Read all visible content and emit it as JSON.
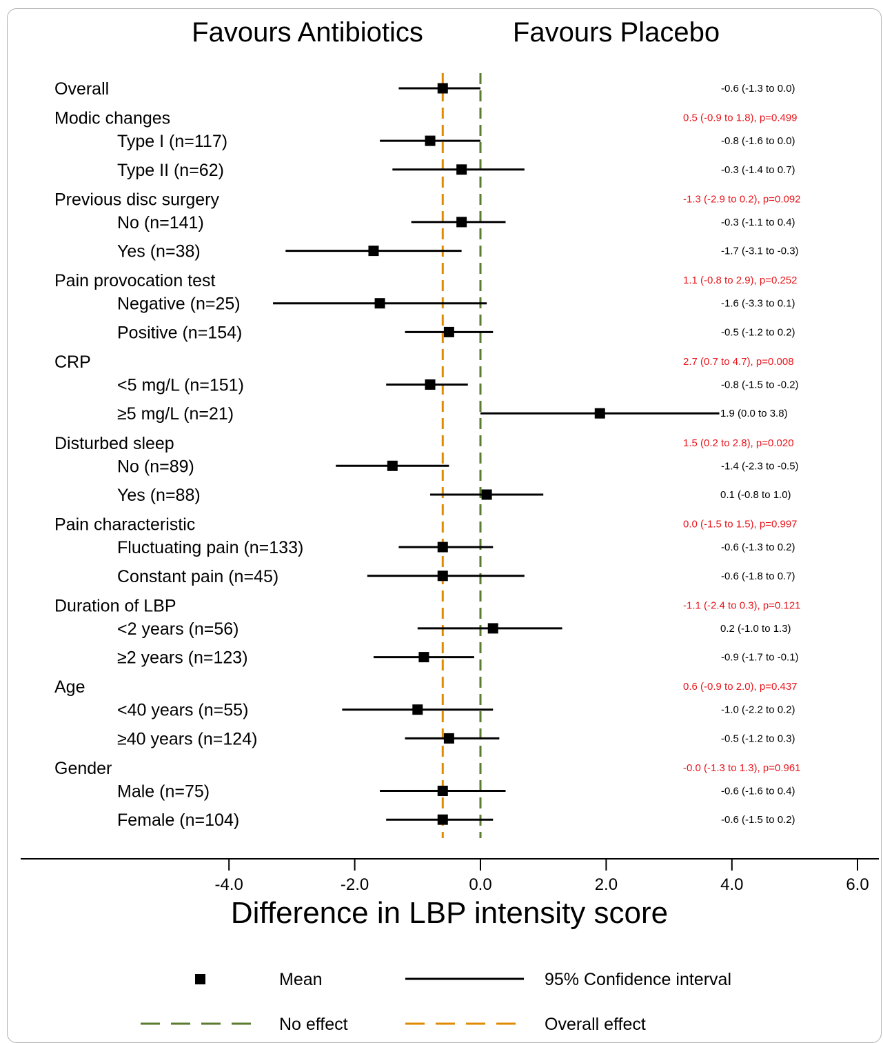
{
  "chart_data": {
    "type": "forest",
    "header_left": "Favours Antibiotics",
    "header_right": "Favours Placebo",
    "xlabel": "Difference in LBP intensity score",
    "xlim": [
      -6.0,
      6.0
    ],
    "x_ticks": [
      -4.0,
      -2.0,
      0.0,
      2.0,
      4.0,
      6.0
    ],
    "x_tick_labels": [
      "-4.0",
      "-2.0",
      "0.0",
      "2.0",
      "4.0",
      "6.0"
    ],
    "no_effect_value": 0.0,
    "overall_effect_value": -0.6,
    "colors": {
      "marker": "#000000",
      "ci": "#000000",
      "no_effect": "#5a7a2e",
      "overall_effect": "#e08a00",
      "interaction_text": "#e8141a"
    },
    "rows": [
      {
        "kind": "overall",
        "label": "Overall",
        "mean": -0.6,
        "lo": -1.3,
        "hi": 0.0,
        "text": "-0.6 (-1.3 to 0.0)"
      },
      {
        "kind": "group",
        "label": "Modic changes",
        "text": "0.5 (-0.9 to 1.8), p=0.499"
      },
      {
        "kind": "sub",
        "label": "Type I (n=117)",
        "mean": -0.8,
        "lo": -1.6,
        "hi": 0.0,
        "text": "-0.8 (-1.6 to 0.0)"
      },
      {
        "kind": "sub",
        "label": "Type II (n=62)",
        "mean": -0.3,
        "lo": -1.4,
        "hi": 0.7,
        "text": "-0.3 (-1.4 to 0.7)"
      },
      {
        "kind": "group",
        "label": "Previous disc surgery",
        "text": "-1.3 (-2.9 to 0.2), p=0.092"
      },
      {
        "kind": "sub",
        "label": "No (n=141)",
        "mean": -0.3,
        "lo": -1.1,
        "hi": 0.4,
        "text": "-0.3 (-1.1 to 0.4)"
      },
      {
        "kind": "sub",
        "label": "Yes (n=38)",
        "mean": -1.7,
        "lo": -3.1,
        "hi": -0.3,
        "text": "-1.7 (-3.1 to -0.3)"
      },
      {
        "kind": "group",
        "label": "Pain provocation test",
        "text": "1.1 (-0.8 to 2.9), p=0.252"
      },
      {
        "kind": "sub",
        "label": "Negative (n=25)",
        "mean": -1.6,
        "lo": -3.3,
        "hi": 0.1,
        "text": "-1.6 (-3.3 to 0.1)"
      },
      {
        "kind": "sub",
        "label": "Positive (n=154)",
        "mean": -0.5,
        "lo": -1.2,
        "hi": 0.2,
        "text": "-0.5 (-1.2 to 0.2)"
      },
      {
        "kind": "group",
        "label": "CRP",
        "text": "2.7 (0.7 to 4.7), p=0.008"
      },
      {
        "kind": "sub",
        "label": "<5 mg/L (n=151)",
        "mean": -0.8,
        "lo": -1.5,
        "hi": -0.2,
        "text": "-0.8 (-1.5 to -0.2)"
      },
      {
        "kind": "sub",
        "label": "≥5 mg/L (n=21)",
        "mean": 1.9,
        "lo": 0.0,
        "hi": 3.8,
        "text": "1.9 (0.0 to 3.8)"
      },
      {
        "kind": "group",
        "label": "Disturbed sleep",
        "text": "1.5 (0.2 to 2.8), p=0.020"
      },
      {
        "kind": "sub",
        "label": "No (n=89)",
        "mean": -1.4,
        "lo": -2.3,
        "hi": -0.5,
        "text": "-1.4 (-2.3 to -0.5)"
      },
      {
        "kind": "sub",
        "label": "Yes (n=88)",
        "mean": 0.1,
        "lo": -0.8,
        "hi": 1.0,
        "text": "0.1 (-0.8 to 1.0)"
      },
      {
        "kind": "group",
        "label": "Pain characteristic",
        "text": "0.0 (-1.5 to 1.5), p=0.997"
      },
      {
        "kind": "sub",
        "label": "Fluctuating pain (n=133)",
        "mean": -0.6,
        "lo": -1.3,
        "hi": 0.2,
        "text": "-0.6 (-1.3 to 0.2)"
      },
      {
        "kind": "sub",
        "label": "Constant pain (n=45)",
        "mean": -0.6,
        "lo": -1.8,
        "hi": 0.7,
        "text": "-0.6 (-1.8 to 0.7)"
      },
      {
        "kind": "group",
        "label": "Duration of LBP",
        "text": "-1.1 (-2.4 to 0.3), p=0.121"
      },
      {
        "kind": "sub",
        "label": "<2 years (n=56)",
        "mean": 0.2,
        "lo": -1.0,
        "hi": 1.3,
        "text": "0.2 (-1.0 to 1.3)"
      },
      {
        "kind": "sub",
        "label": "≥2 years (n=123)",
        "mean": -0.9,
        "lo": -1.7,
        "hi": -0.1,
        "text": "-0.9 (-1.7 to -0.1)"
      },
      {
        "kind": "group",
        "label": "Age",
        "text": "0.6 (-0.9 to 2.0), p=0.437"
      },
      {
        "kind": "sub",
        "label": "<40 years (n=55)",
        "mean": -1.0,
        "lo": -2.2,
        "hi": 0.2,
        "text": "-1.0 (-2.2 to 0.2)"
      },
      {
        "kind": "sub",
        "label": "≥40 years (n=124)",
        "mean": -0.5,
        "lo": -1.2,
        "hi": 0.3,
        "text": "-0.5 (-1.2 to 0.3)"
      },
      {
        "kind": "group",
        "label": "Gender",
        "text": "-0.0 (-1.3 to 1.3), p=0.961"
      },
      {
        "kind": "sub",
        "label": "Male (n=75)",
        "mean": -0.6,
        "lo": -1.6,
        "hi": 0.4,
        "text": "-0.6 (-1.6 to 0.4)"
      },
      {
        "kind": "sub",
        "label": "Female (n=104)",
        "mean": -0.6,
        "lo": -1.5,
        "hi": 0.2,
        "text": "-0.6 (-1.5 to 0.2)"
      }
    ],
    "legend": [
      {
        "symbol": "square",
        "label": "Mean"
      },
      {
        "symbol": "solid-line",
        "label": "95% Confidence interval"
      },
      {
        "symbol": "dashed-green",
        "label": "No effect"
      },
      {
        "symbol": "dashed-orange",
        "label": "Overall effect"
      }
    ]
  }
}
